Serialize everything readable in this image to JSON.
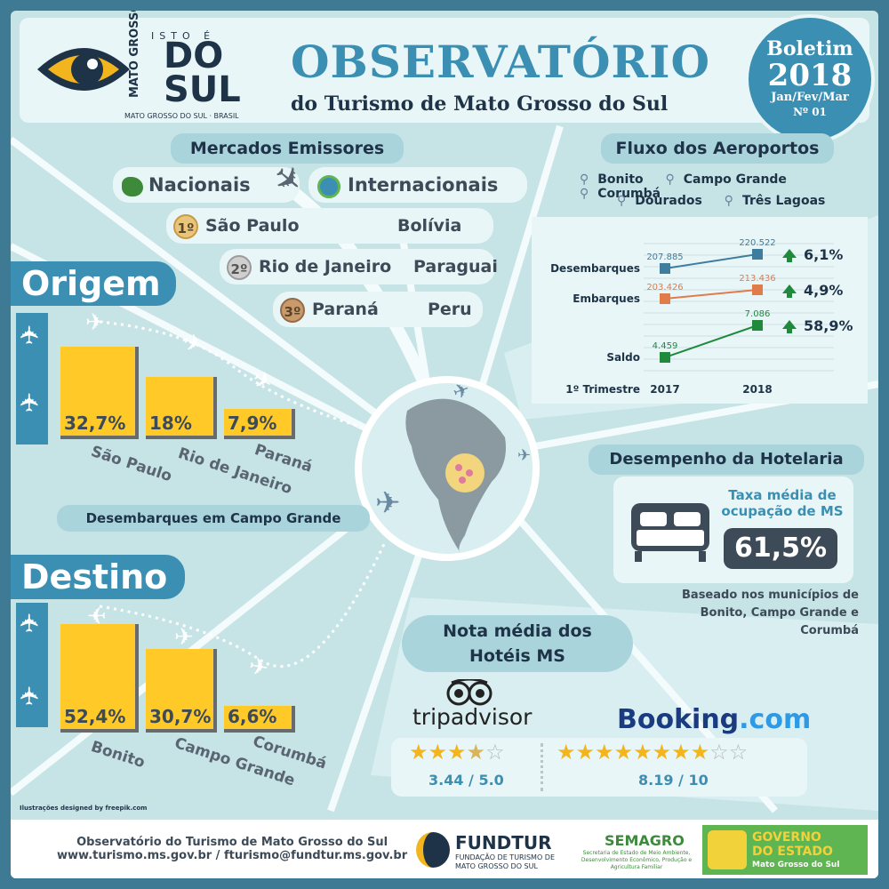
{
  "header": {
    "logo_istoe": "ISTO É",
    "logo_mato": "MATO GROSSO",
    "logo_do": "DO",
    "logo_sul": "SUL",
    "logo_small": "MATO GROSSO DO SUL · BRASIL",
    "title": "OBSERVATÓRIO",
    "subtitle": "do Turismo de Mato Grosso do Sul",
    "bulletin_label": "Boletim",
    "bulletin_year": "2018",
    "bulletin_period": "Jan/Fev/Mar",
    "bulletin_number": "Nº 01"
  },
  "markets": {
    "title": "Mercados Emissores",
    "national_label": "Nacionais",
    "international_label": "Internacionais",
    "rows": [
      {
        "rank": "1º",
        "national": "São Paulo",
        "international": "Bolívia"
      },
      {
        "rank": "2º",
        "national": "Rio de Janeiro",
        "international": "Paraguai"
      },
      {
        "rank": "3º",
        "national": "Paraná",
        "international": "Peru"
      }
    ]
  },
  "origin": {
    "label": "Origem",
    "bars": [
      {
        "value": 32.7,
        "value_label": "32,7%",
        "category": "São Paulo"
      },
      {
        "value": 18,
        "value_label": "18%",
        "category": "Rio de Janeiro"
      },
      {
        "value": 7.9,
        "value_label": "7,9%",
        "category": "Paraná"
      }
    ]
  },
  "landings_label": "Desembarques em Campo Grande",
  "destination": {
    "label": "Destino",
    "bars": [
      {
        "value": 52.4,
        "value_label": "52,4%",
        "category": "Bonito"
      },
      {
        "value": 30.7,
        "value_label": "30,7%",
        "category": "Campo Grande"
      },
      {
        "value": 6.6,
        "value_label": "6,6%",
        "category": "Corumbá"
      }
    ]
  },
  "airports": {
    "title": "Fluxo dos Aeroportos",
    "legend": [
      "Bonito",
      "Campo Grande",
      "Corumbá",
      "Dourados",
      "Três Lagoas"
    ],
    "chart_data": {
      "type": "line",
      "x": [
        "2017",
        "2018"
      ],
      "xlabel": "1º Trimestre",
      "series": [
        {
          "name": "Desembarques",
          "values": [
            207885,
            220522
          ],
          "labels": [
            "207.885",
            "220.522"
          ],
          "change": "6,1%",
          "color": "#3f7d9f"
        },
        {
          "name": "Embarques",
          "values": [
            203426,
            213436
          ],
          "labels": [
            "203.426",
            "213.436"
          ],
          "change": "4,9%",
          "color": "#e07b4a"
        },
        {
          "name": "Saldo",
          "values": [
            4459,
            7086
          ],
          "labels": [
            "4.459",
            "7.086"
          ],
          "change": "58,9%",
          "color": "#1f8a3c"
        }
      ]
    }
  },
  "hotel": {
    "title": "Desempenho da Hotelaria",
    "rate_label": "Taxa média de ocupação de MS",
    "rate_value": "61,5%",
    "note": "Baseado nos municípios de Bonito, Campo Grande e Corumbá"
  },
  "ratings": {
    "title_line1": "Nota média dos",
    "title_line2": "Hotéis MS",
    "tripadvisor_name": "tripadvisor",
    "tripadvisor_score": "3.44 / 5.0",
    "tripadvisor_stars": 3.44,
    "booking_name": "Booking",
    "booking_suffix": ".com",
    "booking_score": "8.19 / 10",
    "booking_stars": 8.19
  },
  "credit": "Ilustrações designed by freepik.com",
  "footer": {
    "line1": "Observatório do Turismo de Mato Grosso do Sul",
    "line2": "www.turismo.ms.gov.br / fturismo@fundtur.ms.gov.br",
    "fundtur_name": "FUNDTUR",
    "fundtur_sub": "FUNDAÇÃO DE TURISMO DE MATO GROSSO DO SUL",
    "semagro_name": "SEMAGRO",
    "semagro_sub": "Secretaria de Estado de Meio Ambiente, Desenvolvimento Econômico, Produção e Agricultura Familiar",
    "gov_line1": "GOVERNO",
    "gov_line2": "DO ESTADO",
    "gov_line3": "Mato Grosso do Sul"
  },
  "colors": {
    "accent": "#3b8fb3",
    "bar": "#ffc928",
    "panel": "#c6e3e6",
    "dark": "#1e3347"
  }
}
